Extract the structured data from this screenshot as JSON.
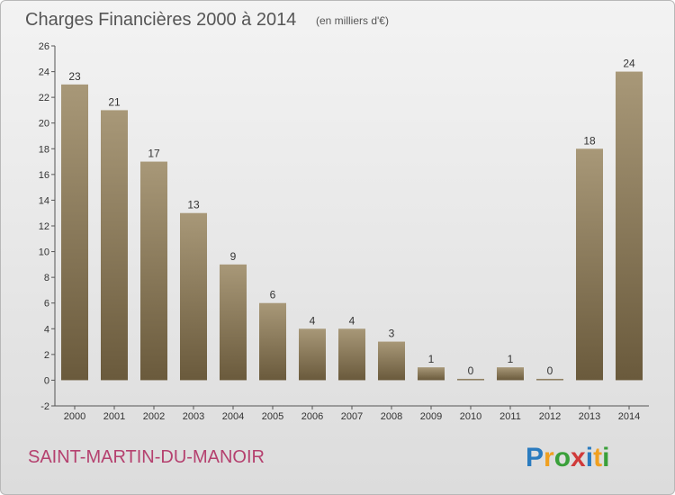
{
  "chart_data": {
    "type": "bar",
    "title": "Charges Financières 2000 à 2014",
    "subtitle": "(en milliers d'€)",
    "categories": [
      "2000",
      "2001",
      "2002",
      "2003",
      "2004",
      "2005",
      "2006",
      "2007",
      "2008",
      "2009",
      "2010",
      "2011",
      "2012",
      "2013",
      "2014"
    ],
    "values": [
      23,
      21,
      17,
      13,
      9,
      6,
      4,
      4,
      3,
      1,
      0,
      1,
      0,
      18,
      24
    ],
    "ylim": [
      -2,
      26
    ],
    "yticks": [
      -2,
      0,
      2,
      4,
      6,
      8,
      10,
      12,
      14,
      16,
      18,
      20,
      22,
      24,
      26
    ],
    "grid": false,
    "bar_color_top": "#a89878",
    "bar_color_bottom": "#6a5a3c"
  },
  "commune": "SAINT-MARTIN-DU-MANOIR",
  "logo": {
    "letters": [
      "P",
      "r",
      "o",
      "x",
      "i",
      "t",
      "i"
    ],
    "colors": [
      "#2a7bbf",
      "#f0a020",
      "#3aa03a",
      "#d03a3a",
      "#2a7bbf",
      "#f0a020",
      "#3aa03a"
    ]
  },
  "colors": {
    "commune_text": "#b5416f",
    "axis": "#555555"
  }
}
